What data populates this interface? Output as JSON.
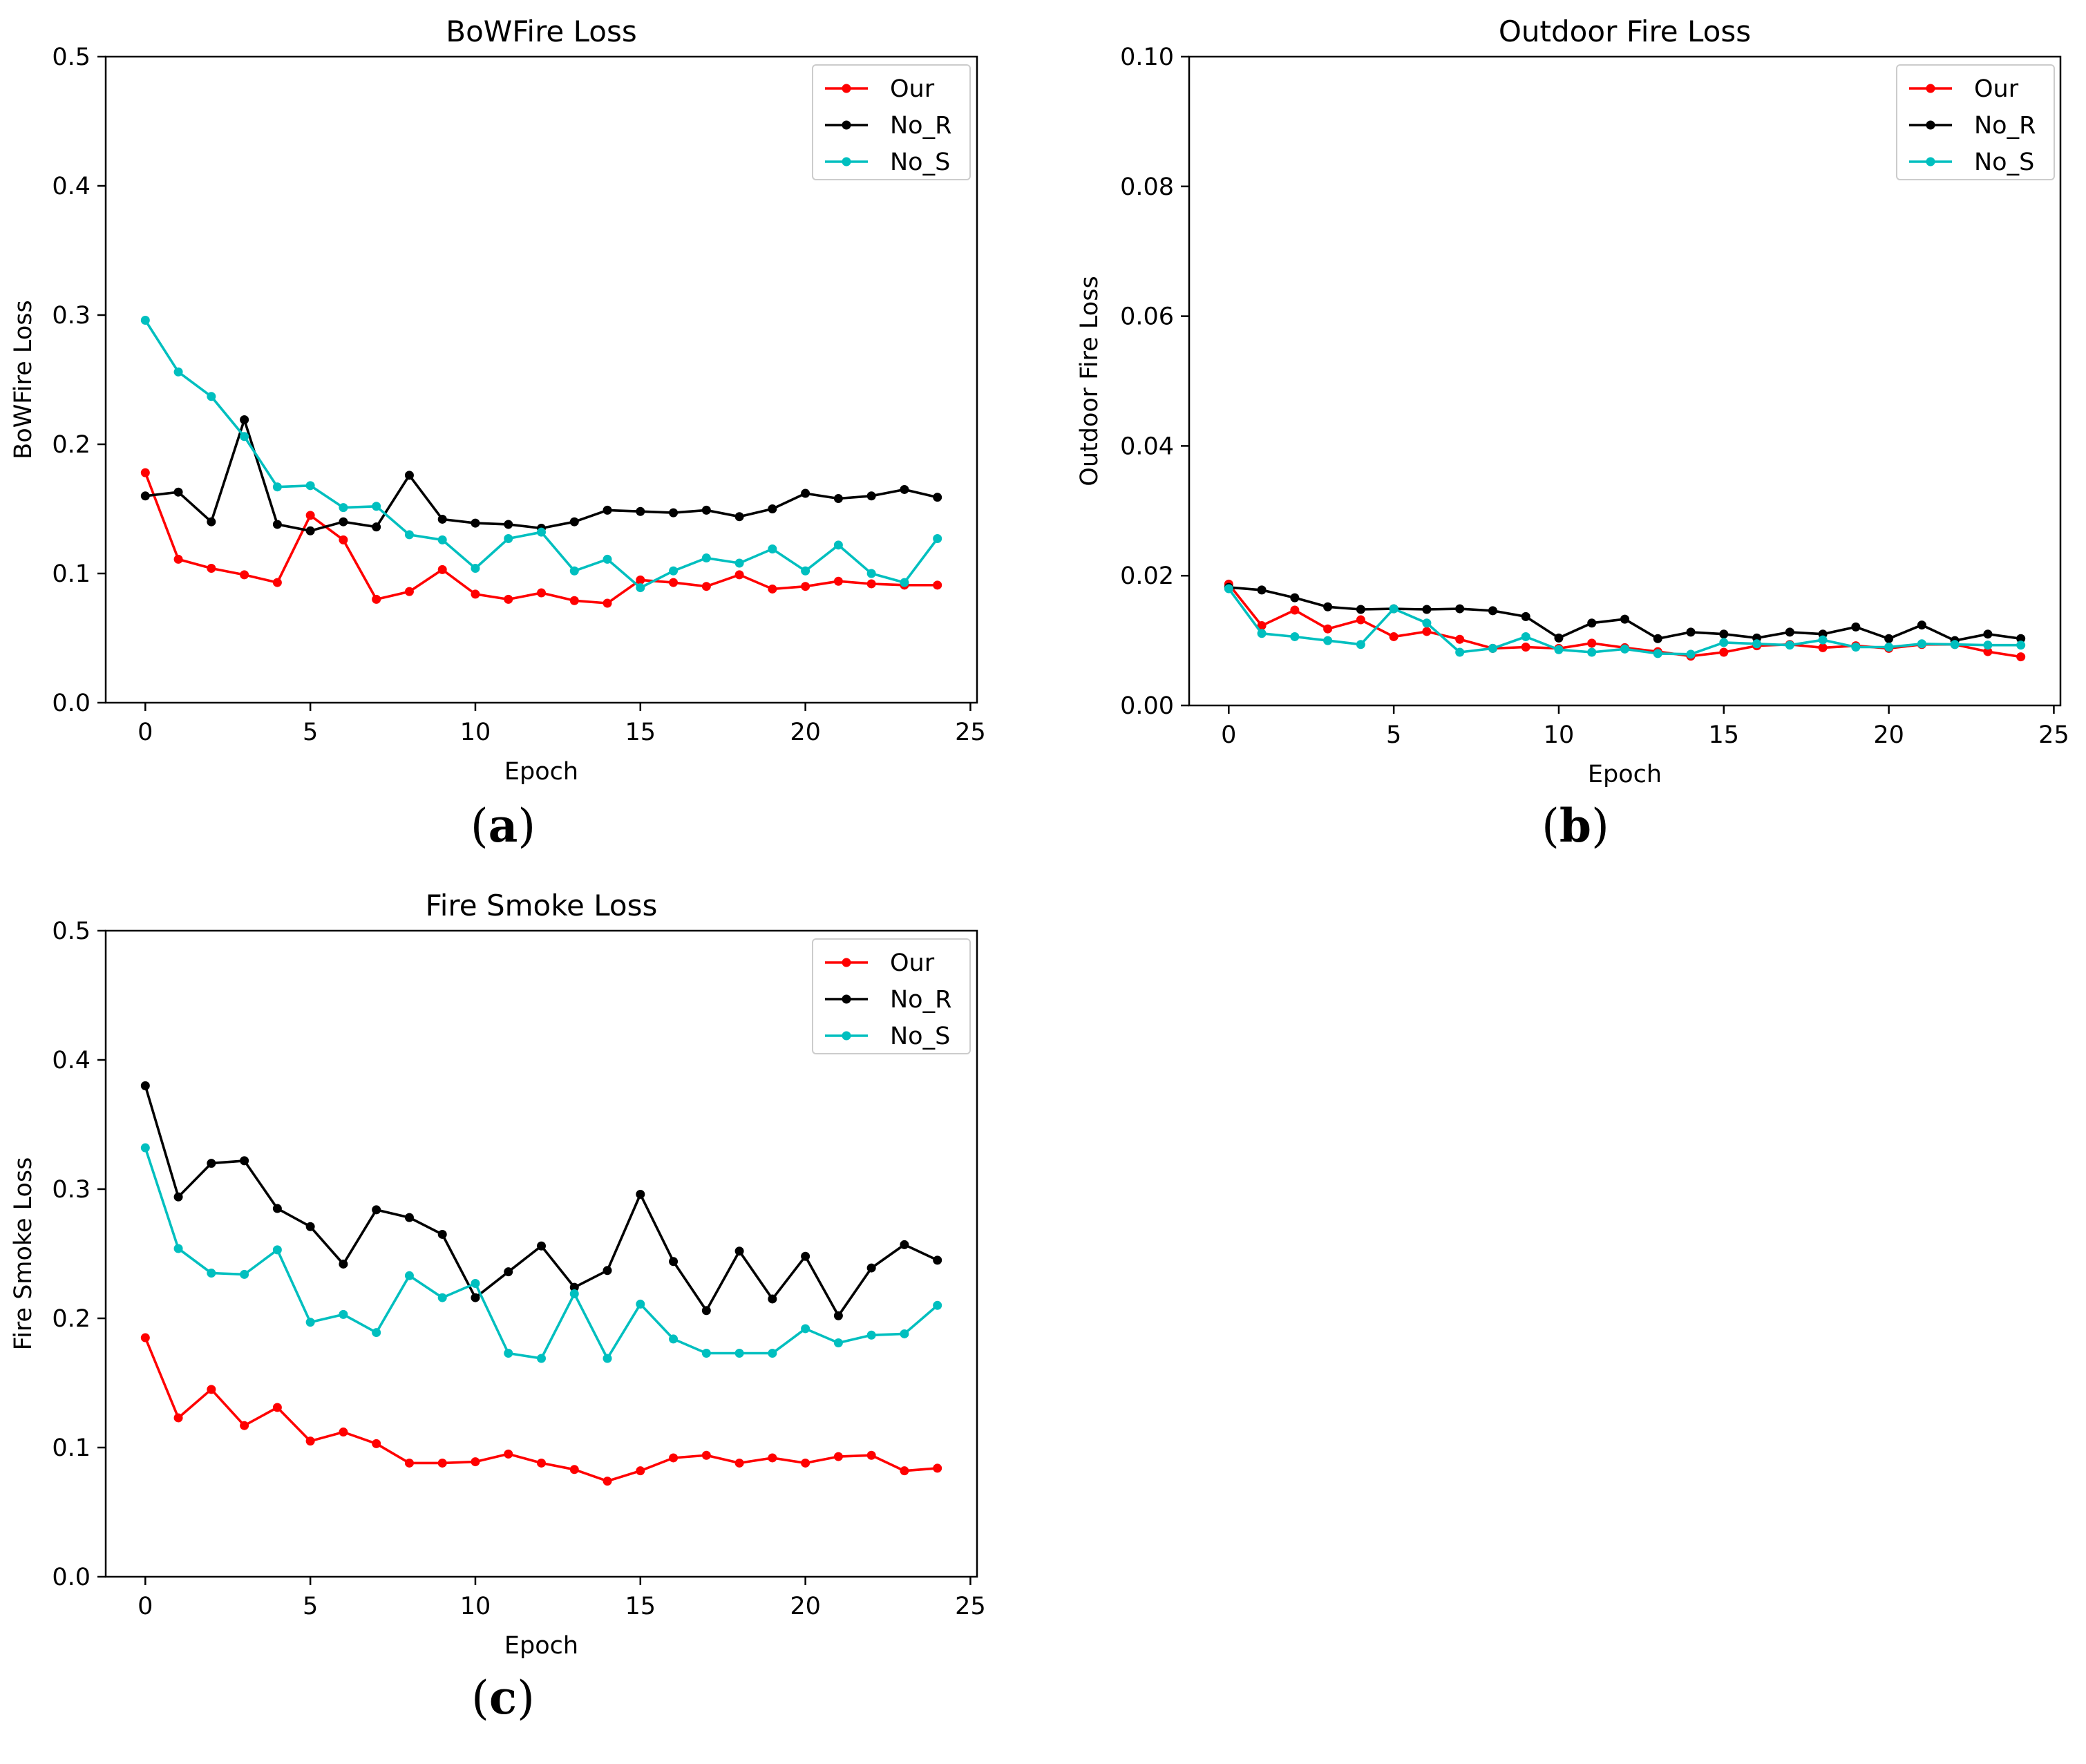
{
  "chart_data": [
    {
      "type": "line",
      "panel_label": "a",
      "title": "BoWFire Loss",
      "xlabel": "Epoch",
      "ylabel": "BoWFire Loss",
      "xlim": [
        -1.2,
        25.2
      ],
      "ylim": [
        0.0,
        0.5
      ],
      "xticks": [
        "0",
        "5",
        "10",
        "15",
        "20",
        "25"
      ],
      "yticks": [
        "0.0",
        "0.1",
        "0.2",
        "0.3",
        "0.4",
        "0.5"
      ],
      "legend_position": "top-right",
      "grid": false,
      "x": [
        0,
        1,
        2,
        3,
        4,
        5,
        6,
        7,
        8,
        9,
        10,
        11,
        12,
        13,
        14,
        15,
        16,
        17,
        18,
        19,
        20,
        21,
        22,
        23,
        24
      ],
      "series": [
        {
          "name": "Our",
          "color": "#ff0000",
          "values": [
            0.178,
            0.111,
            0.104,
            0.099,
            0.093,
            0.145,
            0.126,
            0.08,
            0.086,
            0.103,
            0.084,
            0.08,
            0.085,
            0.079,
            0.077,
            0.095,
            0.093,
            0.09,
            0.099,
            0.088,
            0.09,
            0.094,
            0.092,
            0.091,
            0.091
          ]
        },
        {
          "name": "No_R",
          "color": "#000000",
          "values": [
            0.16,
            0.163,
            0.14,
            0.219,
            0.138,
            0.133,
            0.14,
            0.136,
            0.176,
            0.142,
            0.139,
            0.138,
            0.135,
            0.14,
            0.149,
            0.148,
            0.147,
            0.149,
            0.144,
            0.15,
            0.162,
            0.158,
            0.16,
            0.165,
            0.159
          ]
        },
        {
          "name": "No_S",
          "color": "#00bfbf",
          "values": [
            0.296,
            0.256,
            0.237,
            0.206,
            0.167,
            0.168,
            0.151,
            0.152,
            0.13,
            0.126,
            0.104,
            0.127,
            0.132,
            0.102,
            0.111,
            0.089,
            0.102,
            0.112,
            0.108,
            0.119,
            0.102,
            0.122,
            0.1,
            0.093,
            0.127
          ]
        }
      ]
    },
    {
      "type": "line",
      "panel_label": "b",
      "title": "Outdoor Fire Loss",
      "xlabel": "Epoch",
      "ylabel": "Outdoor Fire Loss",
      "xlim": [
        -1.2,
        25.2
      ],
      "ylim": [
        0.0,
        0.1
      ],
      "xticks": [
        "0",
        "5",
        "10",
        "15",
        "20",
        "25"
      ],
      "yticks": [
        "0.00",
        "0.02",
        "0.04",
        "0.06",
        "0.08",
        "0.10"
      ],
      "legend_position": "top-right",
      "grid": false,
      "x": [
        0,
        1,
        2,
        3,
        4,
        5,
        6,
        7,
        8,
        9,
        10,
        11,
        12,
        13,
        14,
        15,
        16,
        17,
        18,
        19,
        20,
        21,
        22,
        23,
        24
      ],
      "series": [
        {
          "name": "Our",
          "color": "#ff0000",
          "values": [
            0.0187,
            0.0123,
            0.0147,
            0.0118,
            0.0132,
            0.0106,
            0.0114,
            0.0102,
            0.0088,
            0.009,
            0.0088,
            0.0096,
            0.0089,
            0.0083,
            0.0076,
            0.0082,
            0.0092,
            0.0094,
            0.0089,
            0.0092,
            0.0088,
            0.0094,
            0.0094,
            0.0083,
            0.0075
          ]
        },
        {
          "name": "No_R",
          "color": "#000000",
          "values": [
            0.0182,
            0.0178,
            0.0166,
            0.0152,
            0.0148,
            0.0149,
            0.0148,
            0.0149,
            0.0146,
            0.0137,
            0.0104,
            0.0127,
            0.0133,
            0.0103,
            0.0113,
            0.011,
            0.0104,
            0.0113,
            0.011,
            0.0121,
            0.0103,
            0.0124,
            0.01,
            0.011,
            0.0103
          ]
        },
        {
          "name": "No_S",
          "color": "#00bfbf",
          "values": [
            0.018,
            0.0111,
            0.0106,
            0.01,
            0.0094,
            0.0149,
            0.0127,
            0.0082,
            0.0088,
            0.0106,
            0.0086,
            0.0082,
            0.0087,
            0.008,
            0.0079,
            0.0097,
            0.0095,
            0.0093,
            0.0101,
            0.009,
            0.009,
            0.0095,
            0.0094,
            0.0093,
            0.0093
          ]
        }
      ]
    },
    {
      "type": "line",
      "panel_label": "c",
      "title": "Fire Smoke Loss",
      "xlabel": "Epoch",
      "ylabel": "Fire Smoke Loss",
      "xlim": [
        -1.2,
        25.2
      ],
      "ylim": [
        0.0,
        0.5
      ],
      "xticks": [
        "0",
        "5",
        "10",
        "15",
        "20",
        "25"
      ],
      "yticks": [
        "0.0",
        "0.1",
        "0.2",
        "0.3",
        "0.4",
        "0.5"
      ],
      "legend_position": "top-right",
      "grid": false,
      "x": [
        0,
        1,
        2,
        3,
        4,
        5,
        6,
        7,
        8,
        9,
        10,
        11,
        12,
        13,
        14,
        15,
        16,
        17,
        18,
        19,
        20,
        21,
        22,
        23,
        24
      ],
      "series": [
        {
          "name": "Our",
          "color": "#ff0000",
          "values": [
            0.185,
            0.123,
            0.145,
            0.117,
            0.131,
            0.105,
            0.112,
            0.103,
            0.088,
            0.088,
            0.089,
            0.095,
            0.088,
            0.083,
            0.074,
            0.082,
            0.092,
            0.094,
            0.088,
            0.092,
            0.088,
            0.093,
            0.094,
            0.082,
            0.084
          ]
        },
        {
          "name": "No_R",
          "color": "#000000",
          "values": [
            0.38,
            0.294,
            0.32,
            0.322,
            0.285,
            0.271,
            0.242,
            0.284,
            0.278,
            0.265,
            0.216,
            0.236,
            0.256,
            0.224,
            0.237,
            0.296,
            0.244,
            0.206,
            0.252,
            0.215,
            0.248,
            0.202,
            0.239,
            0.257,
            0.245
          ]
        },
        {
          "name": "No_S",
          "color": "#00bfbf",
          "values": [
            0.332,
            0.254,
            0.235,
            0.234,
            0.253,
            0.197,
            0.203,
            0.189,
            0.233,
            0.216,
            0.227,
            0.173,
            0.169,
            0.219,
            0.169,
            0.211,
            0.184,
            0.173,
            0.173,
            0.173,
            0.192,
            0.181,
            0.187,
            0.188,
            0.21
          ]
        }
      ]
    }
  ]
}
